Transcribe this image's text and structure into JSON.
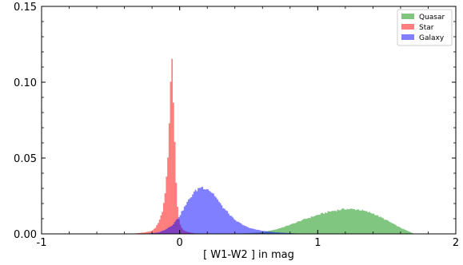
{
  "chart_data": {
    "type": "histogram",
    "xlabel": "[ W1-W2 ] in mag",
    "ylabel": "",
    "title": "",
    "xlim": [
      -1,
      2
    ],
    "ylim": [
      0,
      0.15
    ],
    "x_ticks": [
      -1,
      0,
      1,
      2
    ],
    "x_tick_labels": [
      "-1",
      "0",
      "1",
      "2"
    ],
    "y_ticks": [
      0.0,
      0.05,
      0.1,
      0.15
    ],
    "y_tick_labels": [
      "0.00",
      "0.05",
      "0.10",
      "0.15"
    ],
    "grid": false,
    "legend_position": "top-right",
    "series": [
      {
        "name": "Quasar",
        "color": "#2ca02c",
        "alpha": 0.6,
        "x": [
          0.4,
          0.5,
          0.6,
          0.7,
          0.8,
          0.9,
          1.0,
          1.1,
          1.2,
          1.3,
          1.4,
          1.5,
          1.6,
          1.7
        ],
        "y": [
          0.0,
          0.0005,
          0.001,
          0.003,
          0.006,
          0.0095,
          0.0125,
          0.015,
          0.0165,
          0.016,
          0.0135,
          0.009,
          0.004,
          0.0
        ]
      },
      {
        "name": "Star",
        "color": "#ff0000",
        "alpha": 0.5,
        "x": [
          -0.35,
          -0.3,
          -0.25,
          -0.2,
          -0.175,
          -0.15,
          -0.125,
          -0.1,
          -0.085,
          -0.075,
          -0.065,
          -0.055,
          -0.045,
          -0.035,
          -0.025,
          -0.015,
          -0.005,
          0.005,
          0.02,
          0.05,
          0.1,
          0.15
        ],
        "y": [
          0.0,
          0.0005,
          0.001,
          0.002,
          0.004,
          0.008,
          0.015,
          0.03,
          0.05,
          0.075,
          0.1,
          0.113,
          0.09,
          0.06,
          0.035,
          0.018,
          0.01,
          0.006,
          0.003,
          0.0015,
          0.0005,
          0.0
        ]
      },
      {
        "name": "Galaxy",
        "color": "#0000ff",
        "alpha": 0.5,
        "x": [
          -0.25,
          -0.2,
          -0.15,
          -0.1,
          -0.05,
          0.0,
          0.05,
          0.1,
          0.15,
          0.2,
          0.25,
          0.3,
          0.35,
          0.4,
          0.5,
          0.6,
          0.7,
          0.8,
          0.9
        ],
        "y": [
          0.0,
          0.0005,
          0.001,
          0.003,
          0.006,
          0.012,
          0.02,
          0.027,
          0.031,
          0.03,
          0.026,
          0.019,
          0.014,
          0.009,
          0.004,
          0.002,
          0.001,
          0.0005,
          0.0
        ]
      }
    ]
  }
}
